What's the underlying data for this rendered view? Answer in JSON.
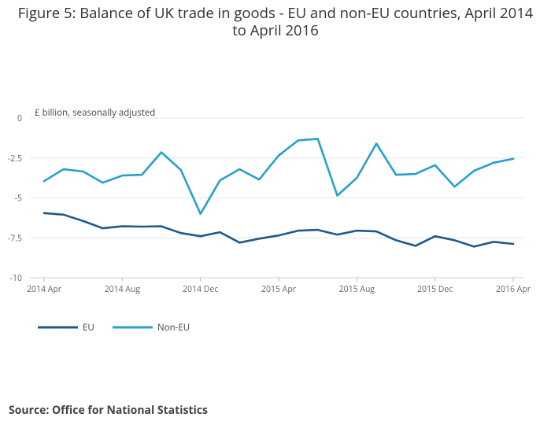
{
  "title": "Figure 5: Balance of UK trade in goods - EU and non-EU countries, April 2014 to April 2016",
  "source": "Source: Office for National Statistics",
  "chart_data": {
    "type": "line",
    "title": "Figure 5: Balance of UK trade in goods - EU and non-EU countries, April 2014 to April 2016",
    "ylabel": "£ billion, seasonally adjusted",
    "xlabel": "",
    "ylim": [
      -10,
      0
    ],
    "yticks": [
      0,
      -2.5,
      -5,
      -7.5,
      -10
    ],
    "ytick_labels": [
      "0",
      "-2.5",
      "-5",
      "-7.5",
      "-10"
    ],
    "grid": true,
    "legend_position": "bottom-left",
    "x": [
      "2014 Apr",
      "2014 May",
      "2014 Jun",
      "2014 Jul",
      "2014 Aug",
      "2014 Sep",
      "2014 Oct",
      "2014 Nov",
      "2014 Dec",
      "2015 Jan",
      "2015 Feb",
      "2015 Mar",
      "2015 Apr",
      "2015 May",
      "2015 Jun",
      "2015 Jul",
      "2015 Aug",
      "2015 Sep",
      "2015 Oct",
      "2015 Nov",
      "2015 Dec",
      "2016 Jan",
      "2016 Feb",
      "2016 Mar",
      "2016 Apr"
    ],
    "xtick_labels": [
      "2014 Apr",
      "2014 Aug",
      "2014 Dec",
      "2015 Apr",
      "2015 Aug",
      "2015 Dec",
      "2016 Apr"
    ],
    "xtick_every": 4,
    "series": [
      {
        "name": "EU",
        "color": "#1f5a8c",
        "values": [
          -5.95,
          -6.05,
          -6.45,
          -6.9,
          -6.78,
          -6.8,
          -6.78,
          -7.2,
          -7.4,
          -7.15,
          -7.8,
          -7.55,
          -7.35,
          -7.05,
          -7.0,
          -7.3,
          -7.05,
          -7.1,
          -7.65,
          -8.0,
          -7.4,
          -7.65,
          -8.05,
          -7.75,
          -7.88
        ]
      },
      {
        "name": "Non-EU",
        "color": "#27a0cc",
        "values": [
          -3.95,
          -3.2,
          -3.35,
          -4.05,
          -3.6,
          -3.55,
          -2.15,
          -3.25,
          -6.0,
          -3.9,
          -3.2,
          -3.85,
          -2.35,
          -1.4,
          -1.3,
          -4.85,
          -3.75,
          -1.6,
          -3.55,
          -3.5,
          -2.95,
          -4.3,
          -3.3,
          -2.8,
          -2.55
        ]
      }
    ]
  }
}
